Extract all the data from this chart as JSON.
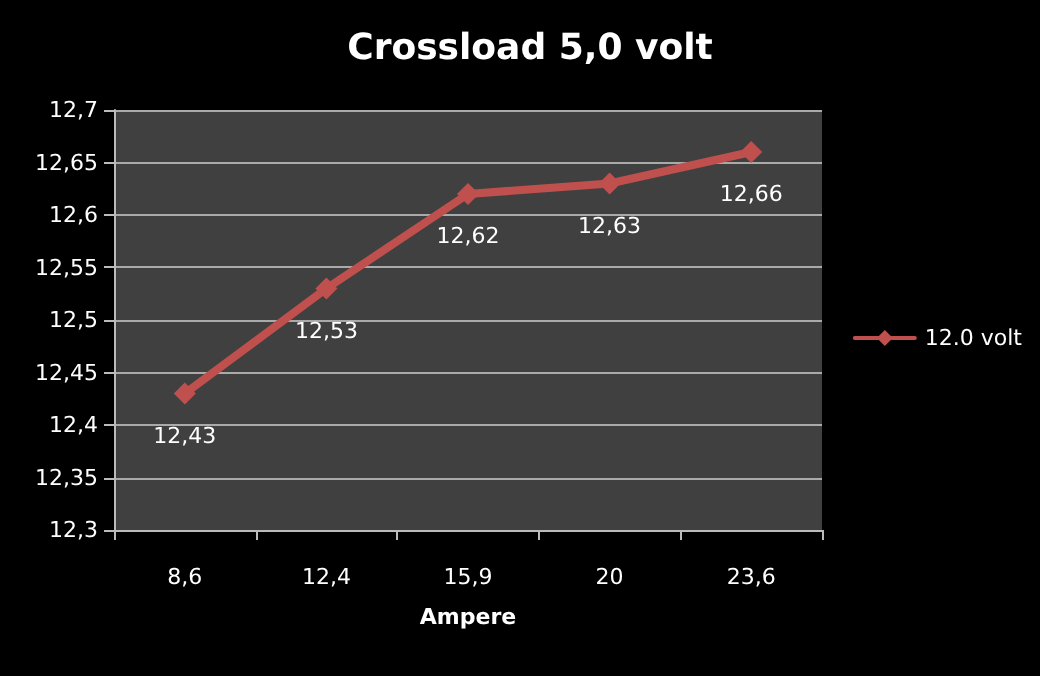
{
  "chart_data": {
    "type": "line",
    "title": "Crossload 5,0 volt",
    "xlabel": "Ampere",
    "categories": [
      "8,6",
      "12,4",
      "15,9",
      "20",
      "23,6"
    ],
    "series": [
      {
        "name": "12.0 volt",
        "color": "#c0504d",
        "values": [
          12.43,
          12.53,
          12.62,
          12.63,
          12.66
        ],
        "value_labels": [
          "12,43",
          "12,53",
          "12,62",
          "12,63",
          "12,66"
        ]
      }
    ],
    "ylim": [
      12.3,
      12.7
    ],
    "yticks": [
      {
        "value": 12.3,
        "label": "12,3"
      },
      {
        "value": 12.35,
        "label": "12,35"
      },
      {
        "value": 12.4,
        "label": "12,4"
      },
      {
        "value": 12.45,
        "label": "12,45"
      },
      {
        "value": 12.5,
        "label": "12,5"
      },
      {
        "value": 12.55,
        "label": "12,55"
      },
      {
        "value": 12.6,
        "label": "12,6"
      },
      {
        "value": 12.65,
        "label": "12,65"
      },
      {
        "value": 12.7,
        "label": "12,7"
      }
    ],
    "grid": "y",
    "legend": "right",
    "marker": "diamond",
    "line_style": "solid"
  }
}
